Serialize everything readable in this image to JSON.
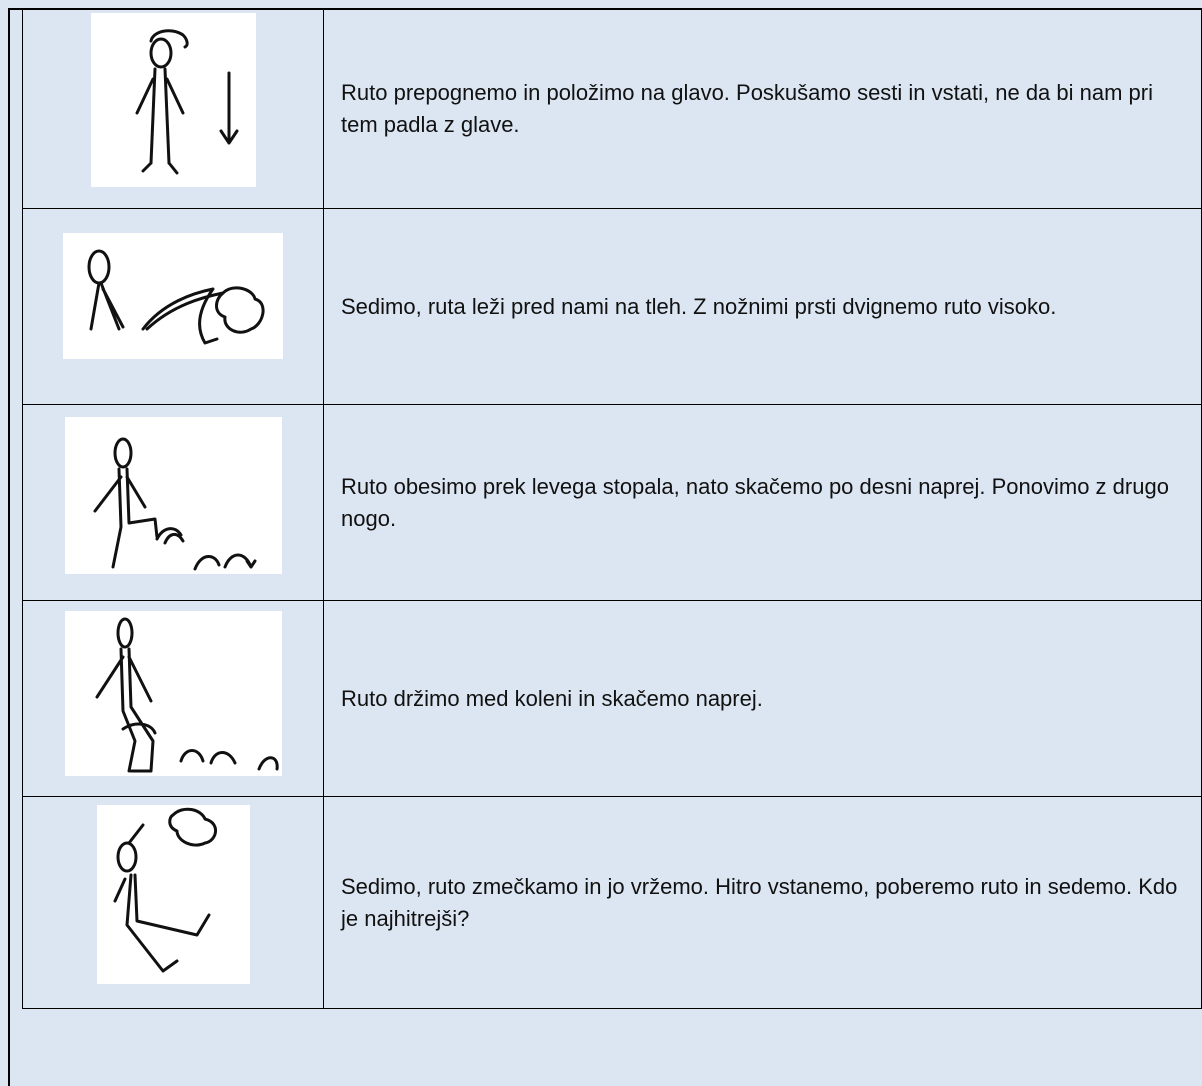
{
  "rows": [
    {
      "text": "Ruto prepognemo in položimo na glavo. Poskušamo sesti in vstati, ne da bi nam pri tem padla z glave."
    },
    {
      "text": "Sedimo, ruta leži pred nami na tleh. Z nožnimi prsti dvignemo ruto visoko."
    },
    {
      "text": "Ruto obesimo prek levega stopala, nato skačemo po desni naprej. Ponovimo z drugo nogo."
    },
    {
      "text": "Ruto držimo med koleni in skačemo naprej."
    },
    {
      "text": "Sedimo, ruto zmečkamo in jo vržemo. Hitro vstanemo, poberemo ruto in sedemo. Kdo je najhitrejši?"
    }
  ]
}
